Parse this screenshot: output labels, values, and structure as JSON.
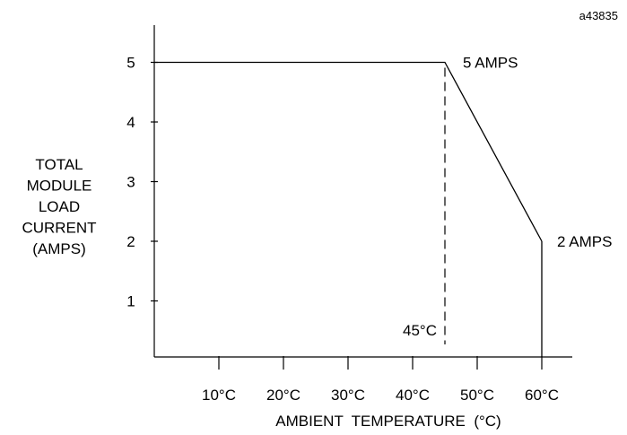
{
  "figure_id": "a43835",
  "chart_data": {
    "type": "line",
    "title": "",
    "xlabel": "AMBIENT  TEMPERATURE  (°C)",
    "ylabel_lines": [
      "TOTAL",
      "MODULE",
      "LOAD",
      "CURRENT",
      "(AMPS)"
    ],
    "x_ticks": [
      10,
      20,
      30,
      40,
      50,
      60
    ],
    "x_tick_labels": [
      "10°C",
      "20°C",
      "30°C",
      "40°C",
      "50°C",
      "60°C"
    ],
    "y_ticks": [
      1,
      2,
      3,
      4,
      5
    ],
    "y_tick_labels": [
      "1",
      "2",
      "3",
      "4",
      "5"
    ],
    "xlim": [
      0,
      65
    ],
    "ylim": [
      0,
      5.5
    ],
    "grid": false,
    "series": [
      {
        "values": [
          [
            0,
            5
          ],
          [
            45,
            5
          ],
          [
            60,
            2
          ]
        ]
      }
    ],
    "vertical_marker": {
      "x": 45,
      "label": "45°C",
      "style": "dashed"
    },
    "annotations": [
      {
        "x": 45,
        "y": 5,
        "text": "5 AMPS"
      },
      {
        "x": 60,
        "y": 2,
        "text": "2 AMPS"
      }
    ]
  }
}
